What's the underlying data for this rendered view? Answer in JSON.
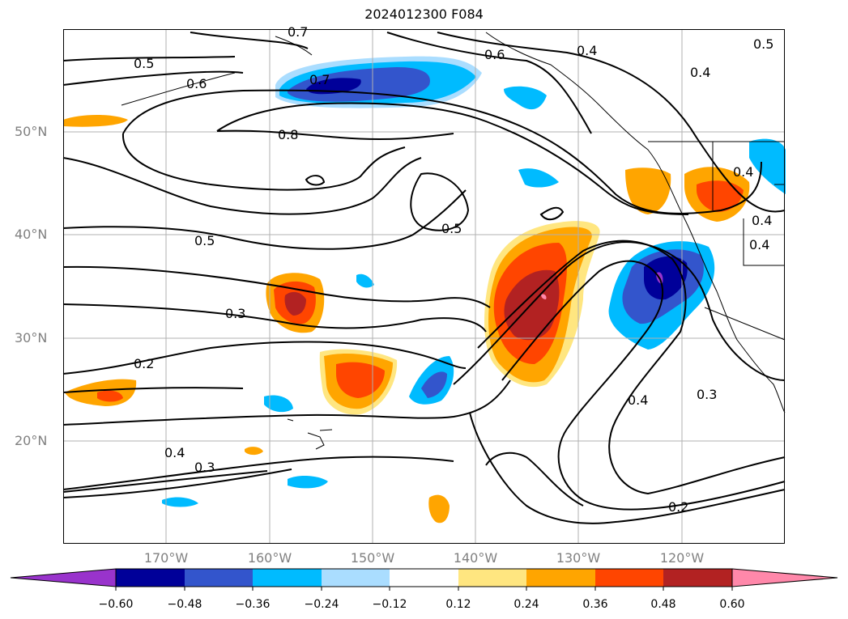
{
  "title": "2024012300 F084",
  "lat_labels": [
    "50°N",
    "40°N",
    "30°N",
    "20°N"
  ],
  "lon_labels": [
    "170°W",
    "160°W",
    "150°W",
    "140°W",
    "130°W",
    "120°W"
  ],
  "colorbar": {
    "labels": [
      "−0.60",
      "−0.48",
      "−0.36",
      "−0.24",
      "−0.12",
      "0.12",
      "0.24",
      "0.36",
      "0.48",
      "0.60"
    ],
    "colors": [
      "#9933cc",
      "#000099",
      "#3355cc",
      "#00bbff",
      "#aaddff",
      "#ffffff",
      "#ffe680",
      "#ffa500",
      "#ff4500",
      "#b22222",
      "#ff88aa"
    ]
  },
  "contour_labels": [
    "0.7",
    "0.5",
    "0.6",
    "0.7",
    "0.6",
    "0.4",
    "0.5",
    "0.4",
    "0.8",
    "0.4",
    "0.5",
    "0.5",
    "0.4",
    "0.4",
    "0.3",
    "0.2",
    "0.4",
    "0.3",
    "0.4",
    "0.3",
    "0.2"
  ],
  "colors": {
    "contour": "#000000",
    "grid": "#b0b0b0",
    "coast": "#000000"
  }
}
